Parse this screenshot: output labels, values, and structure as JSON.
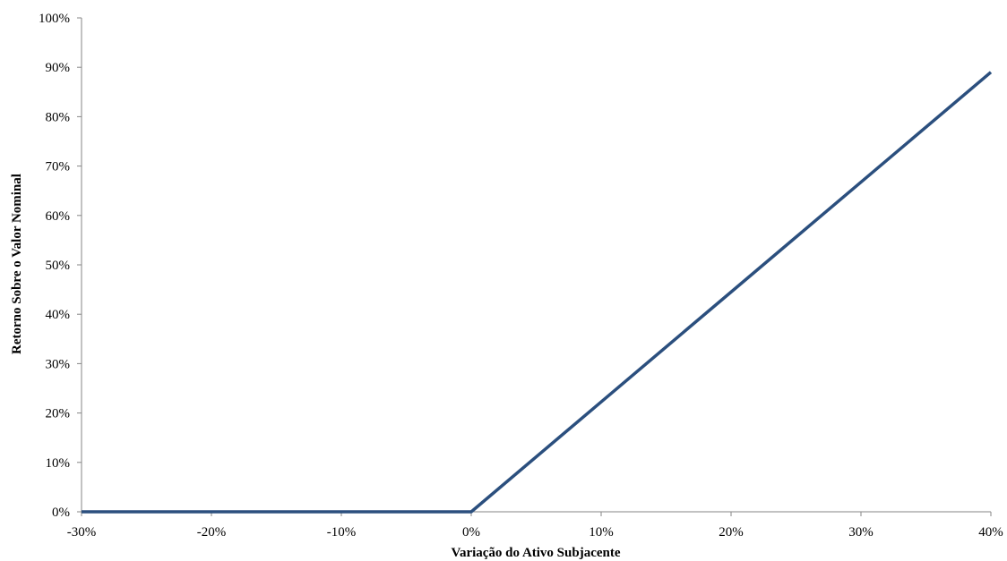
{
  "chart_data": {
    "type": "line",
    "title": "",
    "xlabel": "Variação do Ativo Subjacente",
    "ylabel": "Retorno Sobre o Valor Nominal",
    "xlim": [
      -30,
      40
    ],
    "ylim": [
      0,
      100
    ],
    "x_ticks": [
      -30,
      -20,
      -10,
      0,
      10,
      20,
      30,
      40
    ],
    "x_tick_labels": [
      "-30%",
      "-20%",
      "-10%",
      "0%",
      "10%",
      "20%",
      "30%",
      "40%"
    ],
    "y_ticks": [
      0,
      10,
      20,
      30,
      40,
      50,
      60,
      70,
      80,
      90,
      100
    ],
    "y_tick_labels": [
      "0%",
      "10%",
      "20%",
      "30%",
      "40%",
      "50%",
      "60%",
      "70%",
      "80%",
      "90%",
      "100%"
    ],
    "grid": false,
    "legend": "none",
    "series": [
      {
        "color": "#2b4f7e",
        "x": [
          -30,
          -20,
          -10,
          0,
          10,
          20,
          30,
          40
        ],
        "y": [
          0,
          0,
          0,
          0,
          22.25,
          44.5,
          66.75,
          89
        ]
      }
    ]
  }
}
